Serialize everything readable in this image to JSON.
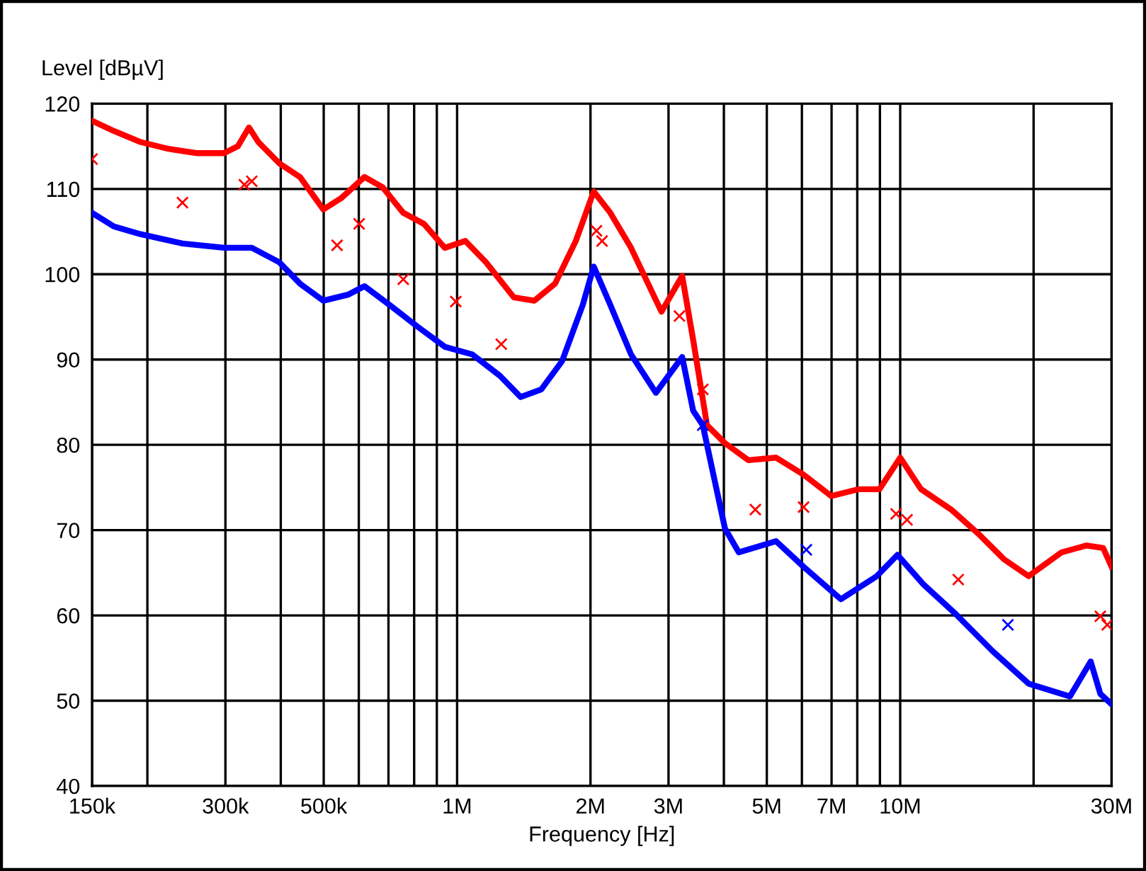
{
  "chart_data": {
    "type": "line",
    "ylabel": "Level [dBµV]",
    "xlabel": "Frequency [Hz]",
    "log": "x",
    "grid": true,
    "xlim": [
      150000,
      30000000
    ],
    "ylim": [
      40,
      120
    ],
    "xticks": [
      {
        "value": 150000,
        "label": "150k"
      },
      {
        "value": 200000,
        "label": null
      },
      {
        "value": 300000,
        "label": "300k"
      },
      {
        "value": 400000,
        "label": null
      },
      {
        "value": 500000,
        "label": "500k"
      },
      {
        "value": 600000,
        "label": null
      },
      {
        "value": 700000,
        "label": null
      },
      {
        "value": 800000,
        "label": null
      },
      {
        "value": 900000,
        "label": null
      },
      {
        "value": 1000000,
        "label": "1M"
      },
      {
        "value": 2000000,
        "label": "2M"
      },
      {
        "value": 3000000,
        "label": "3M"
      },
      {
        "value": 4000000,
        "label": null
      },
      {
        "value": 5000000,
        "label": "5M"
      },
      {
        "value": 6000000,
        "label": null
      },
      {
        "value": 7000000,
        "label": "7M"
      },
      {
        "value": 8000000,
        "label": null
      },
      {
        "value": 9000000,
        "label": null
      },
      {
        "value": 10000000,
        "label": "10M"
      },
      {
        "value": 20000000,
        "label": null
      },
      {
        "value": 30000000,
        "label": "30M"
      }
    ],
    "yticks": [
      40,
      50,
      60,
      70,
      80,
      90,
      100,
      110,
      120
    ],
    "series": [
      {
        "color": "#ff0000",
        "x": [
          150000,
          168000,
          193000,
          223000,
          258000,
          298000,
          320000,
          339000,
          356000,
          397000,
          442000,
          499000,
          547000,
          618000,
          679000,
          756000,
          842000,
          938000,
          1044000,
          1162000,
          1342000,
          1494000,
          1664000,
          1853000,
          2034000,
          2217000,
          2469000,
          2892000,
          3221000,
          3410000,
          3664000,
          4022000,
          4544000,
          5245000,
          6052000,
          6987000,
          8065000,
          8981000,
          10000000,
          11140000,
          13040000,
          15060000,
          17130000,
          19490000,
          23140000,
          26340000,
          28710000,
          30000000
        ],
        "values": [
          118.0,
          116.8,
          115.5,
          114.7,
          114.2,
          114.2,
          115.0,
          117.2,
          115.5,
          113.0,
          111.4,
          107.6,
          108.9,
          111.4,
          110.2,
          107.2,
          105.9,
          103.1,
          103.9,
          101.4,
          97.3,
          96.9,
          98.9,
          103.9,
          109.7,
          107.2,
          103.1,
          95.6,
          99.8,
          92.3,
          82.3,
          80.2,
          78.2,
          78.5,
          76.5,
          74.0,
          74.8,
          74.8,
          78.5,
          74.8,
          72.4,
          69.5,
          66.6,
          64.6,
          67.4,
          68.2,
          67.9,
          65.7
        ]
      },
      {
        "color": "#0000ff",
        "x": [
          150000,
          168000,
          193000,
          240000,
          298000,
          344000,
          397000,
          442000,
          499000,
          567000,
          618000,
          704000,
          812000,
          938000,
          1082000,
          1249000,
          1391000,
          1549000,
          1725000,
          1921000,
          2034000,
          2217000,
          2469000,
          2810000,
          3221000,
          3410000,
          3585000,
          4022000,
          4321000,
          5245000,
          6052000,
          7345000,
          8852000,
          9858000,
          11300000,
          13320000,
          16170000,
          19490000,
          24160000,
          26910000,
          28290000,
          29980000
        ],
        "values": [
          107.2,
          105.6,
          104.7,
          103.6,
          103.1,
          103.1,
          101.4,
          98.9,
          96.9,
          97.6,
          98.6,
          96.4,
          93.9,
          91.5,
          90.6,
          88.1,
          85.6,
          86.5,
          89.8,
          96.4,
          100.9,
          96.4,
          90.6,
          86.1,
          90.3,
          84.0,
          82.3,
          70.2,
          67.4,
          68.7,
          65.7,
          61.9,
          64.6,
          67.1,
          63.6,
          60.2,
          55.8,
          52.0,
          50.5,
          54.6,
          50.8,
          49.6
        ]
      },
      {
        "type": "scatter",
        "color": "#ff0000",
        "marker": "cross",
        "x": [
          150000,
          240000,
          331000,
          344000,
          536000,
          601000,
          756000,
          993000,
          1258000,
          2063000,
          2124000,
          3175000,
          3585000,
          4710000,
          6052000,
          9788000,
          10360000,
          13520000,
          28290000,
          29330000
        ],
        "values": [
          113.5,
          108.4,
          110.5,
          110.9,
          103.4,
          105.9,
          99.4,
          96.8,
          91.8,
          105.1,
          103.9,
          95.1,
          86.5,
          72.4,
          72.7,
          71.9,
          71.2,
          64.2,
          59.9,
          58.9
        ]
      },
      {
        "type": "scatter",
        "color": "#0000ff",
        "marker": "cross",
        "x": [
          3585000,
          6140000,
          17500000
        ],
        "values": [
          82.3,
          67.7,
          58.9
        ]
      }
    ]
  }
}
